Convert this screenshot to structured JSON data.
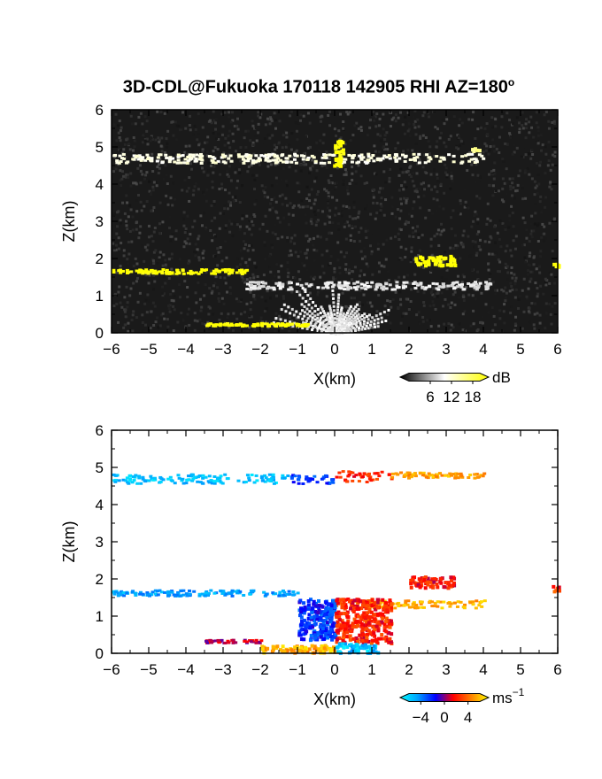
{
  "figure": {
    "title_text": "3D-CDL@Fukuoka 170118 142905 RHI AZ=180",
    "title_superscript": "o"
  },
  "chart_data": [
    {
      "type": "heatmap",
      "panel": "reflectivity",
      "xlabel": "X(km)",
      "ylabel": "Z(km)",
      "xlim": [
        -6,
        6
      ],
      "ylim": [
        0,
        6
      ],
      "x_ticks": [
        -6,
        -5,
        -4,
        -3,
        -2,
        -1,
        0,
        1,
        2,
        3,
        4,
        5,
        6
      ],
      "y_ticks": [
        0,
        1,
        2,
        3,
        4,
        5,
        6
      ],
      "grid": false,
      "colorbar": {
        "unit": "dB",
        "ticks": [
          6,
          12,
          18
        ],
        "range": [
          0,
          20
        ],
        "colors": [
          "#000000",
          "#ffffff",
          "#ffff00"
        ]
      },
      "features": [
        {
          "kind": "layer",
          "x": [
            -6,
            4
          ],
          "z": 4.72,
          "thickness": 0.25,
          "value": 11
        },
        {
          "kind": "spot",
          "x": [
            -0.05,
            0.2
          ],
          "z": [
            4.5,
            5.2
          ],
          "value": 20
        },
        {
          "kind": "spot",
          "x": [
            3.6,
            3.9
          ],
          "z": [
            4.9,
            5.0
          ],
          "value": 14
        },
        {
          "kind": "layer",
          "x": [
            -6,
            -2.4
          ],
          "z": 1.68,
          "thickness": 0.12,
          "value": 20
        },
        {
          "kind": "spot",
          "x": [
            2.1,
            3.2
          ],
          "z": [
            1.85,
            2.1
          ],
          "value": 20
        },
        {
          "kind": "spot",
          "x": [
            5.85,
            6
          ],
          "z": [
            1.8,
            1.9
          ],
          "value": 20
        },
        {
          "kind": "layer",
          "x": [
            -2.4,
            4.2
          ],
          "z": 1.3,
          "thickness": 0.2,
          "value": 9
        },
        {
          "kind": "fan",
          "x": [
            -1.5,
            1.5
          ],
          "z": [
            0,
            1.45
          ],
          "value": 8
        },
        {
          "kind": "layer",
          "x": [
            -3.5,
            -0.7
          ],
          "z": 0.25,
          "thickness": 0.08,
          "value": 20
        }
      ]
    },
    {
      "type": "heatmap",
      "panel": "doppler_velocity",
      "xlabel": "X(km)",
      "ylabel": "Z(km)",
      "xlim": [
        -6,
        6
      ],
      "ylim": [
        0,
        6
      ],
      "x_ticks": [
        -6,
        -5,
        -4,
        -3,
        -2,
        -1,
        0,
        1,
        2,
        3,
        4,
        5,
        6
      ],
      "y_ticks": [
        0,
        1,
        2,
        3,
        4,
        5,
        6
      ],
      "grid": false,
      "colorbar": {
        "unit": "ms",
        "unit_exponent": "−1",
        "ticks": [
          -4,
          0,
          4
        ],
        "tick_labels": [
          "−4",
          "0",
          "4"
        ],
        "range": [
          -6,
          6
        ],
        "colors": [
          "#00ffff",
          "#00a0ff",
          "#0000ff",
          "#ff0000",
          "#ff8000",
          "#ffff00"
        ]
      },
      "features": [
        {
          "kind": "layer",
          "x": [
            -6,
            -1.3
          ],
          "z": 4.72,
          "thickness": 0.25,
          "value": -4.5
        },
        {
          "kind": "layer",
          "x": [
            -1.3,
            0
          ],
          "z": 4.72,
          "thickness": 0.25,
          "value": -2
        },
        {
          "kind": "layer",
          "x": [
            0,
            1.5
          ],
          "z": 4.78,
          "thickness": 0.3,
          "value": 1.8
        },
        {
          "kind": "layer",
          "x": [
            1.5,
            4.0
          ],
          "z": 4.82,
          "thickness": 0.15,
          "value": 4.3
        },
        {
          "kind": "layer",
          "x": [
            -6,
            -1.0
          ],
          "z": 1.65,
          "thickness": 0.15,
          "value": -3.8
        },
        {
          "kind": "layer",
          "x": [
            0,
            4.0
          ],
          "z": 1.35,
          "thickness": 0.2,
          "value": 4.5
        },
        {
          "kind": "spot",
          "x": [
            2.0,
            3.2
          ],
          "z": [
            1.8,
            2.1
          ],
          "value": 1.5
        },
        {
          "kind": "spot",
          "x": [
            -1.0,
            0
          ],
          "z": [
            0.4,
            1.5
          ],
          "value": -1.8
        },
        {
          "kind": "spot",
          "x": [
            0,
            1.5
          ],
          "z": [
            0.3,
            1.5
          ],
          "value": 1.8
        },
        {
          "kind": "spot",
          "x": [
            -2.0,
            0
          ],
          "z": [
            0.05,
            0.25
          ],
          "value": 4.5
        },
        {
          "kind": "spot",
          "x": [
            0,
            1.2
          ],
          "z": [
            0.05,
            0.3
          ],
          "value": -4.5
        },
        {
          "kind": "layer",
          "x": [
            -3.5,
            -2.0
          ],
          "z": 0.35,
          "thickness": 0.08,
          "value": 0.5
        },
        {
          "kind": "spot",
          "x": [
            5.8,
            6
          ],
          "z": [
            1.7,
            1.85
          ],
          "value": 2
        }
      ]
    }
  ]
}
